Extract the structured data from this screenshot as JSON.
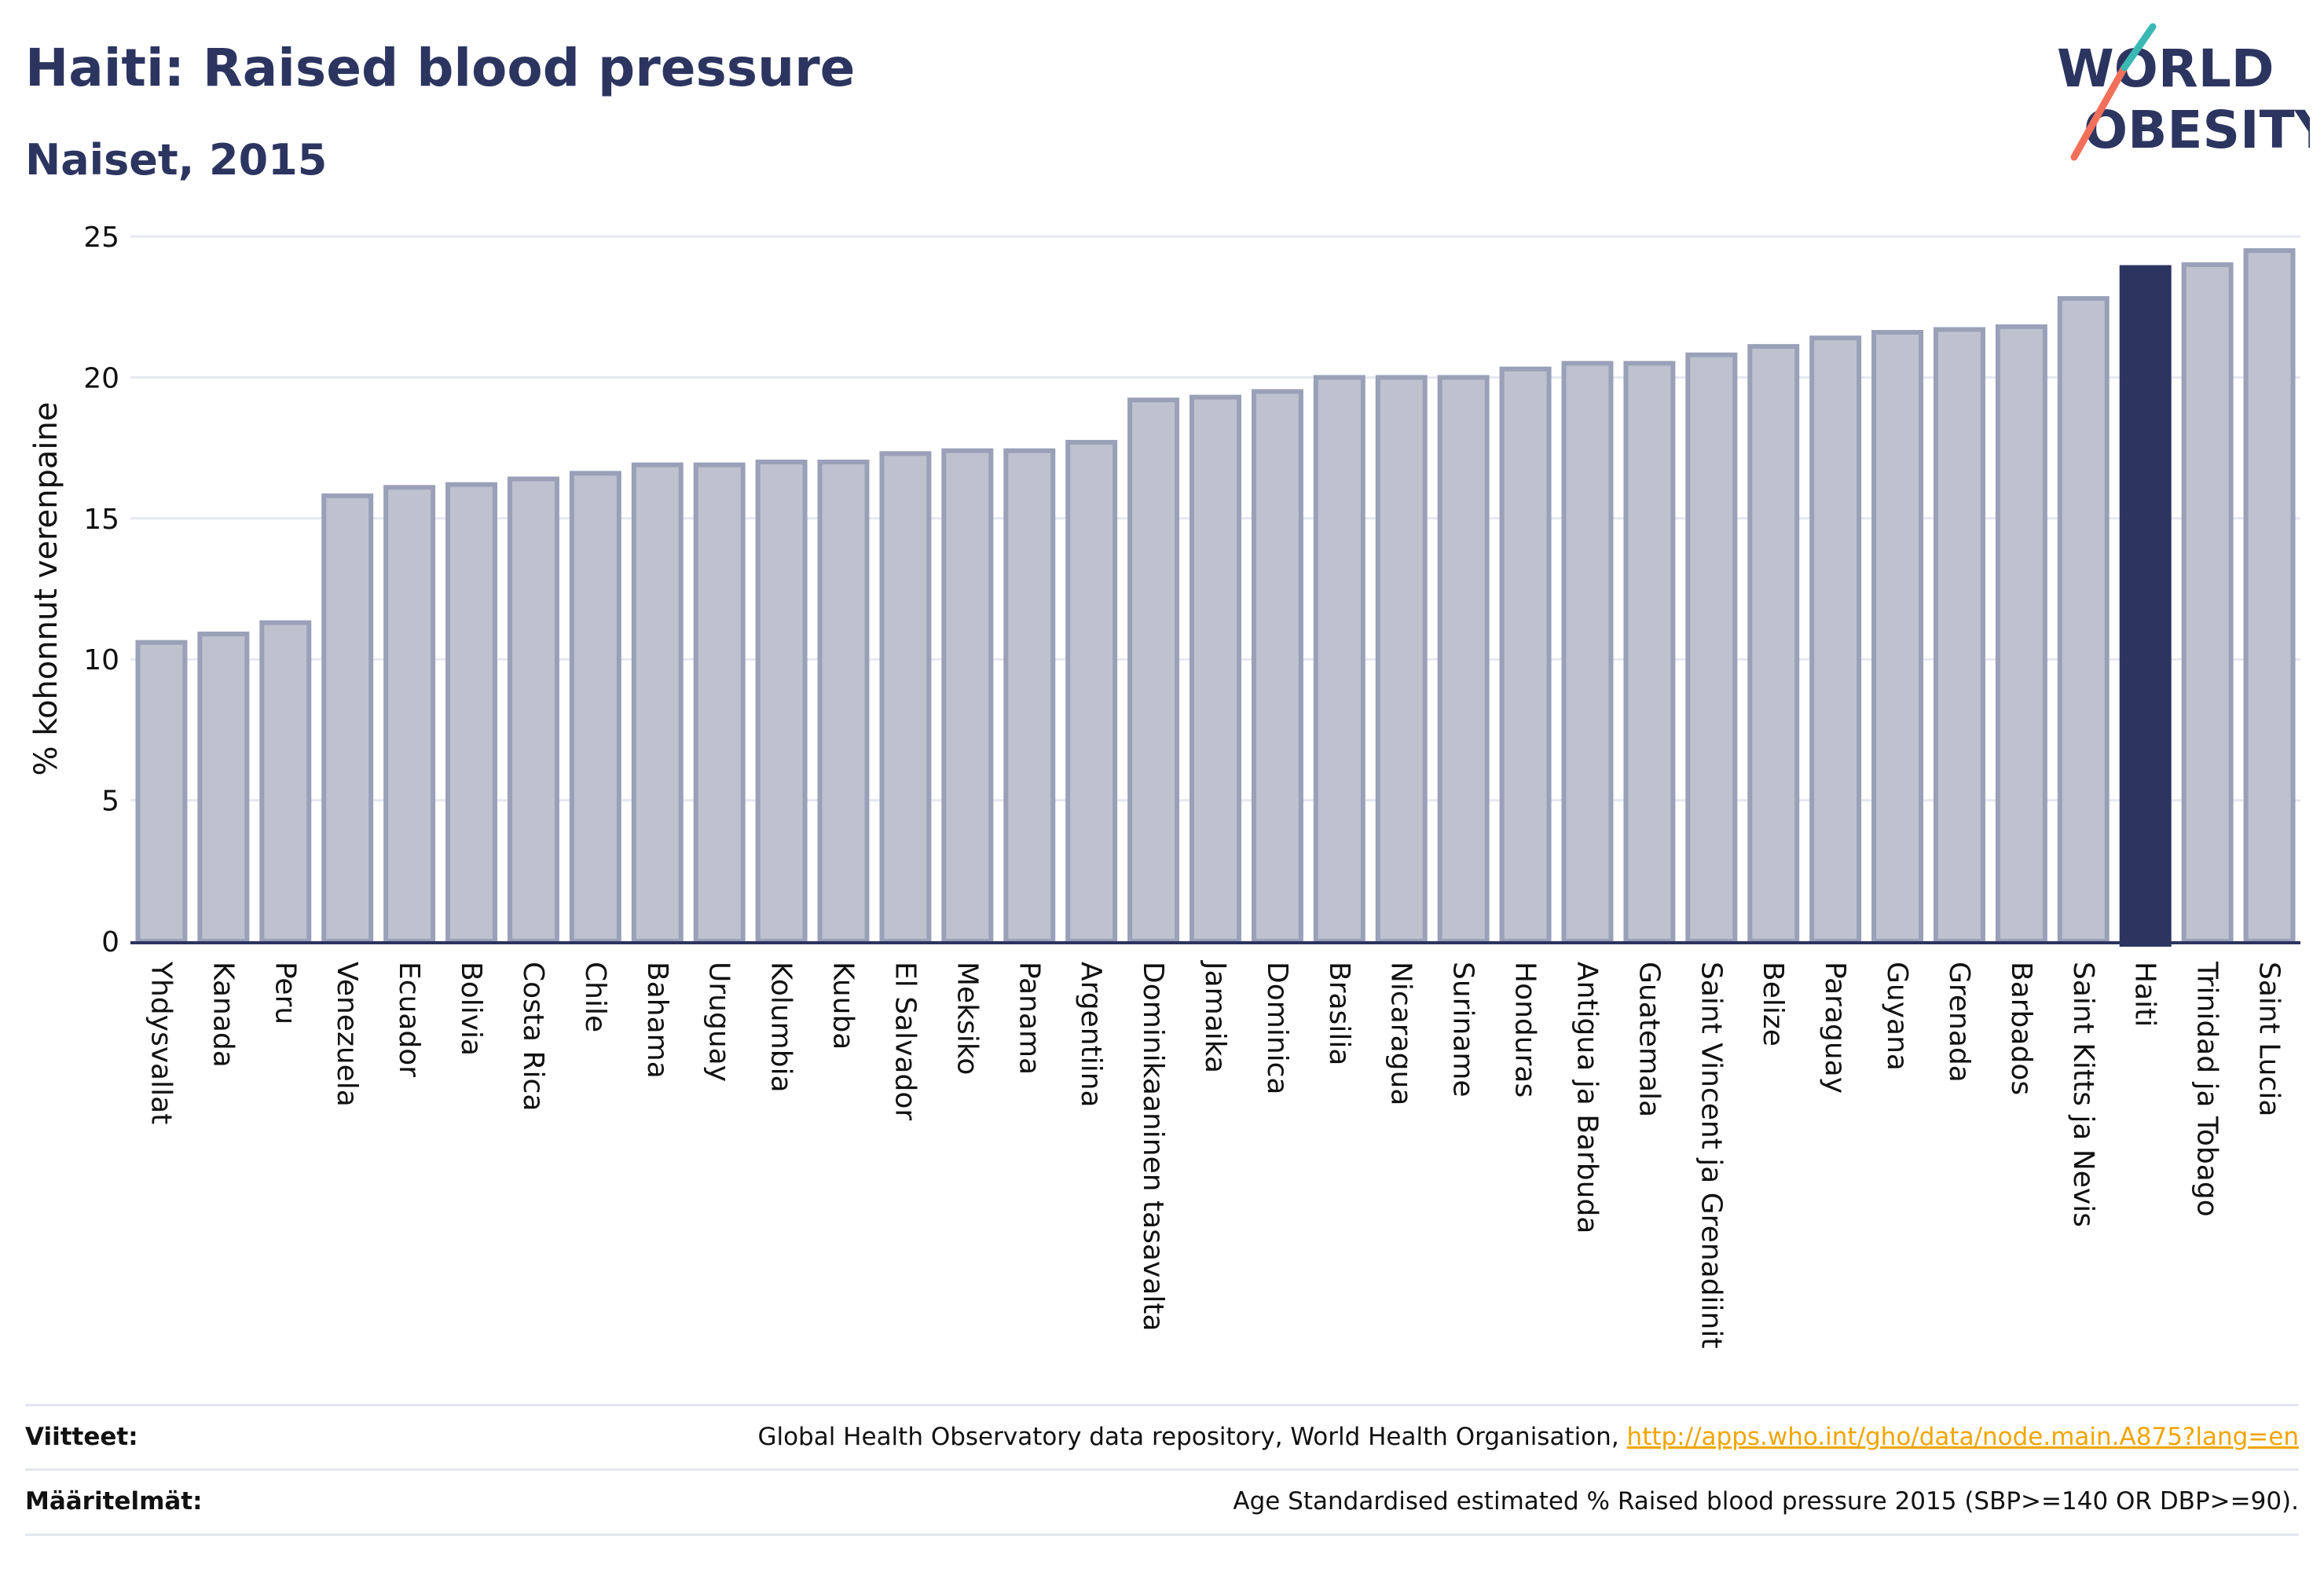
{
  "title": "Haiti: Raised blood pressure",
  "subtitle": "Naiset, 2015",
  "logo": {
    "line1": "WORLD",
    "line2": "OBESITY",
    "colors": [
      "#2c3560",
      "#f2705a",
      "#3ab8b4"
    ]
  },
  "chart_data": {
    "type": "bar",
    "ylabel": "% kohonnut verenpaine",
    "ylim": [
      0,
      25
    ],
    "yticks": [
      0,
      5,
      10,
      15,
      20,
      25
    ],
    "highlight": "Haiti",
    "colors": {
      "bar": "#bec2ce",
      "bar_stroke": "#9aa0b8",
      "highlight": "#2c3560"
    },
    "categories": [
      "Yhdysvallat",
      "Kanada",
      "Peru",
      "Venezuela",
      "Ecuador",
      "Bolivia",
      "Costa Rica",
      "Chile",
      "Bahama",
      "Uruguay",
      "Kolumbia",
      "Kuuba",
      "El Salvador",
      "Meksiko",
      "Panama",
      "Argentiina",
      "Dominikaaninen tasavalta",
      "Jamaika",
      "Dominica",
      "Brasilia",
      "Nicaragua",
      "Suriname",
      "Honduras",
      "Antigua ja Barbuda",
      "Guatemala",
      "Saint Vincent ja Grenadiinit",
      "Belize",
      "Paraguay",
      "Guyana",
      "Grenada",
      "Barbados",
      "Saint Kitts ja Nevis",
      "Haiti",
      "Trinidad ja Tobago",
      "Saint Lucia"
    ],
    "values": [
      10.6,
      10.9,
      11.3,
      15.8,
      16.1,
      16.2,
      16.4,
      16.6,
      16.9,
      16.9,
      17.0,
      17.0,
      17.3,
      17.4,
      17.4,
      17.7,
      19.2,
      19.3,
      19.5,
      20.0,
      20.0,
      20.0,
      20.3,
      20.5,
      20.5,
      20.8,
      21.1,
      21.4,
      21.6,
      21.7,
      21.8,
      22.8,
      23.9,
      24.0,
      24.5
    ]
  },
  "footer": {
    "sources_label": "Viitteet:",
    "sources_text": "Global Health Observatory data repository, World Health Organisation, ",
    "sources_link": "http://apps.who.int/gho/data/node.main.A875?lang=en",
    "definitions_label": "Määritelmät:",
    "definitions_text": "Age Standardised estimated % Raised blood pressure 2015 (SBP>=140 OR DBP>=90)."
  }
}
